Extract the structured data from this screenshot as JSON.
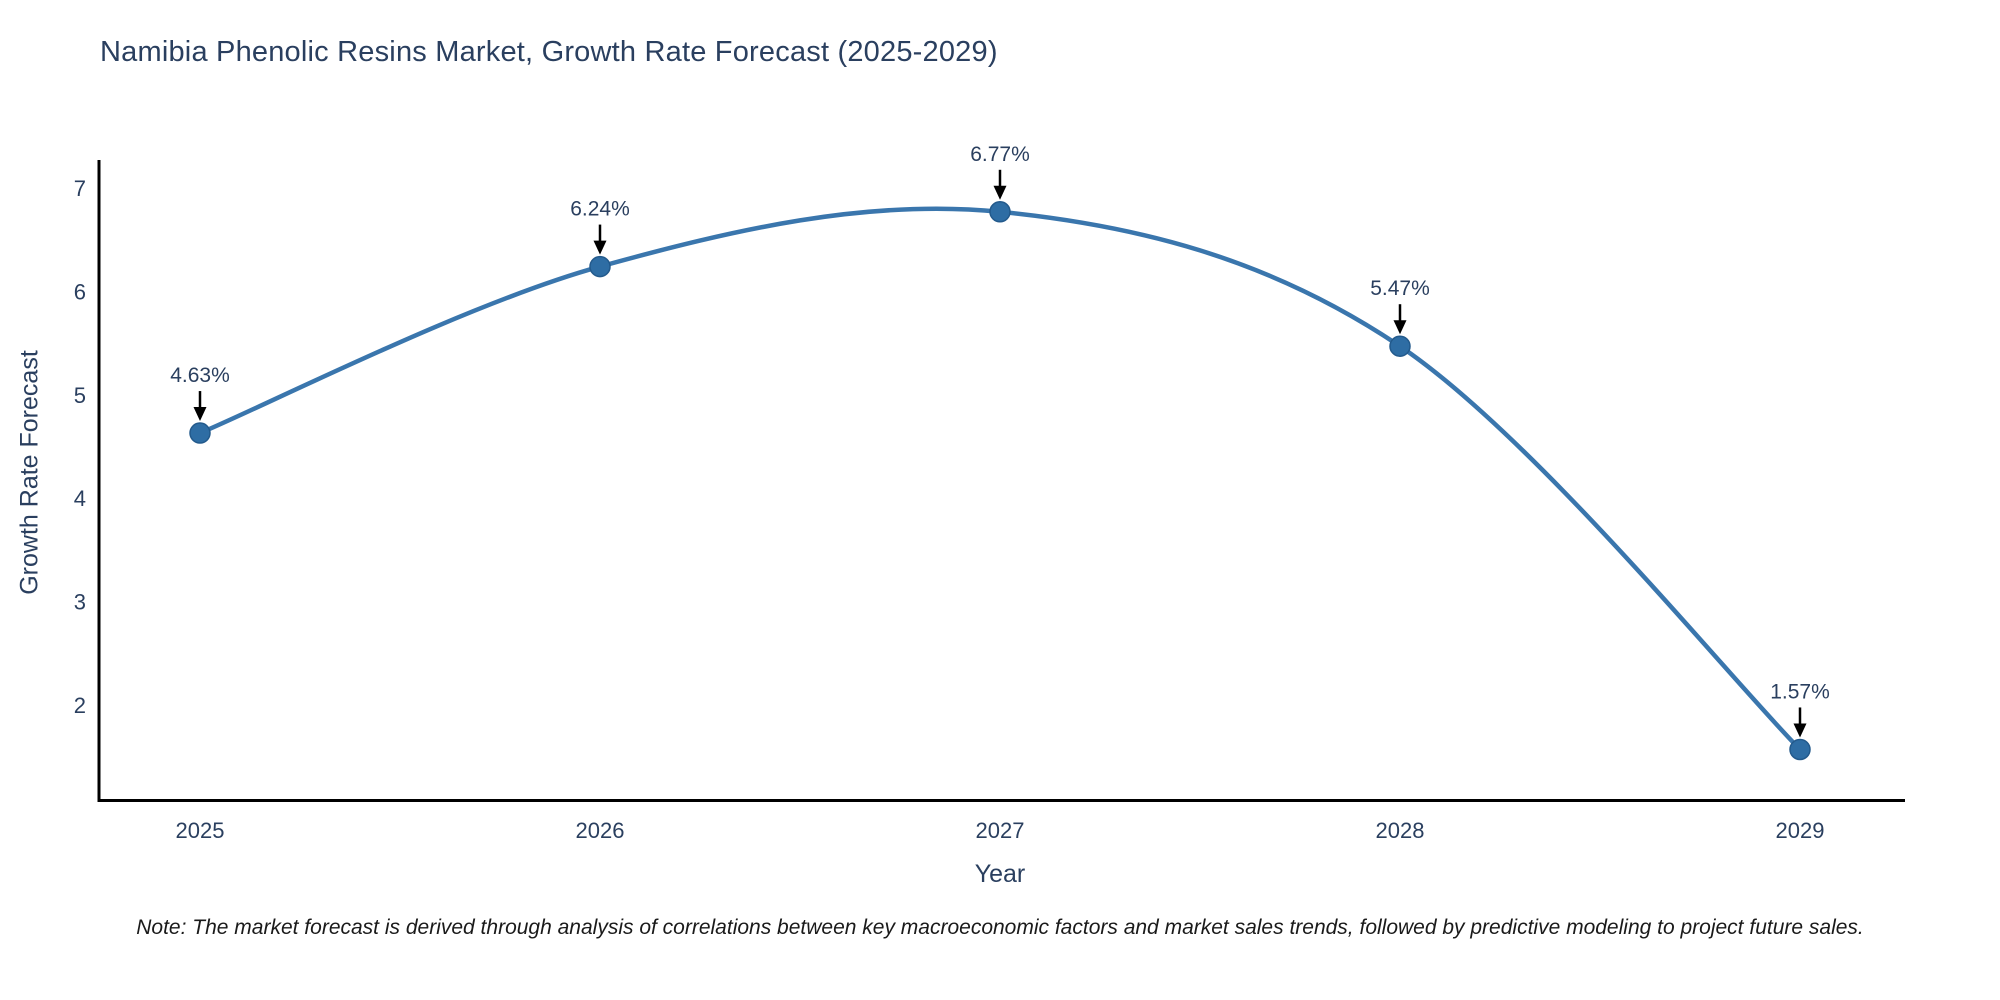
{
  "chart_data": {
    "type": "line",
    "title": "Namibia Phenolic Resins Market, Growth Rate Forecast (2025-2029)",
    "xlabel": "Year",
    "ylabel": "Growth Rate Forecast",
    "x": [
      2025,
      2026,
      2027,
      2028,
      2029
    ],
    "values": [
      4.63,
      6.24,
      6.77,
      5.47,
      1.57
    ],
    "point_labels": [
      "4.63%",
      "6.24%",
      "6.77%",
      "5.47%",
      "1.57%"
    ],
    "y_ticks": [
      2,
      3,
      4,
      5,
      6,
      7
    ],
    "ylim": [
      1.08,
      7.2
    ],
    "xlim": [
      2024.75,
      2029.26
    ],
    "line_shape": "spline",
    "grid": false,
    "legend": "none",
    "colors": {
      "line": "#3a76ad",
      "marker": "#2e6da4",
      "marker_edge": "#235a8c",
      "axis": "#000000",
      "text": "#2a3f5f",
      "arrow": "#000000",
      "background": "#ffffff"
    }
  },
  "footnote": "Note: The market forecast is derived through analysis of correlations between key macroeconomic factors and market sales trends, followed by predictive modeling to project future sales."
}
